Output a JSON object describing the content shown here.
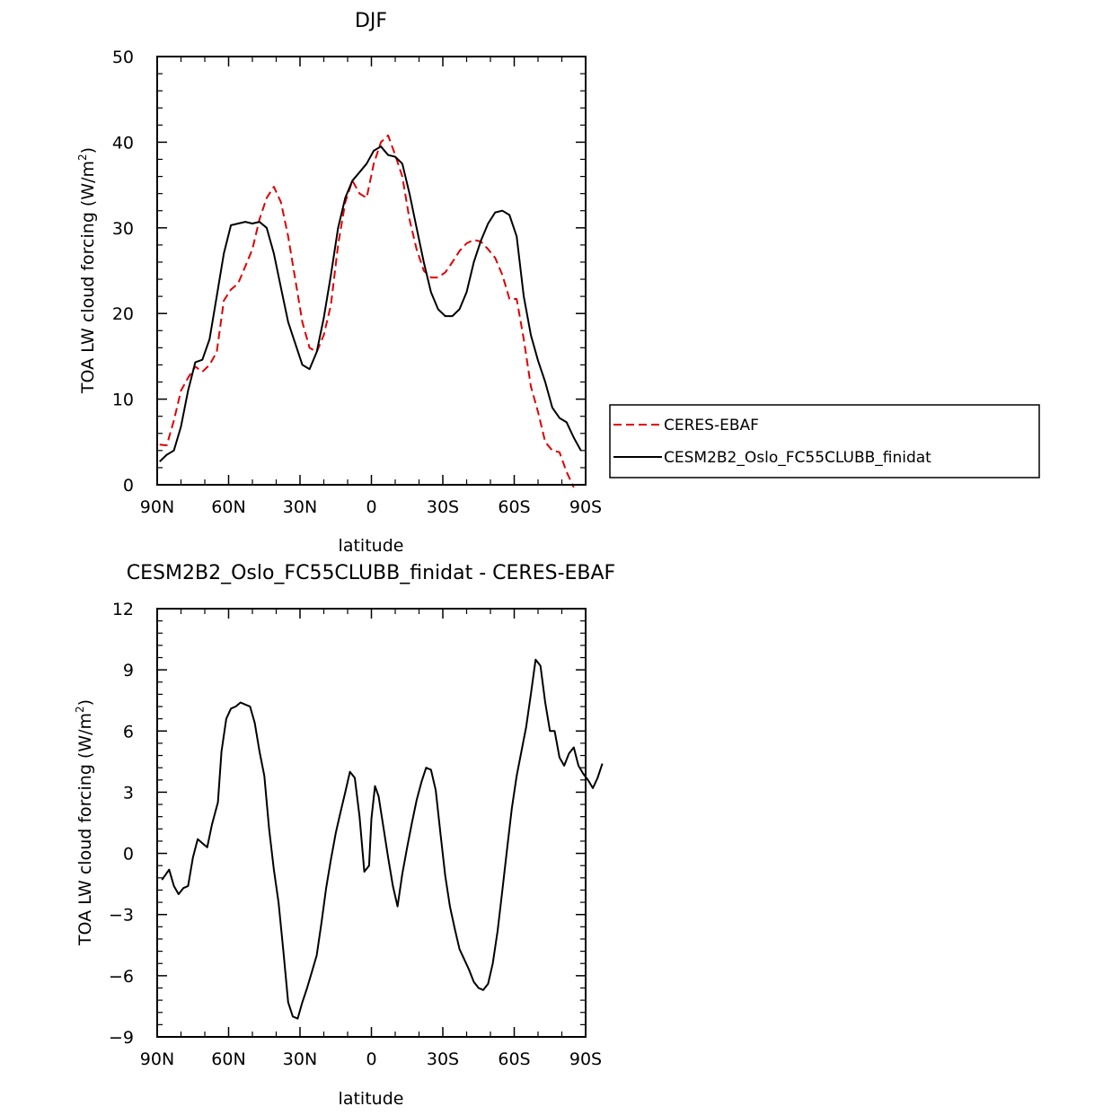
{
  "chart_data": [
    {
      "type": "line",
      "title": "DJF",
      "xlabel": "latitude",
      "ylabel": "TOA LW cloud forcing (W/m",
      "ylabel_sup": "2",
      "ylabel_close": ")",
      "xlim": [
        90,
        -90
      ],
      "ylim": [
        0,
        50
      ],
      "x_ticks": [
        {
          "value": 90,
          "label": "90N"
        },
        {
          "value": 60,
          "label": "60N"
        },
        {
          "value": 30,
          "label": "30N"
        },
        {
          "value": 0,
          "label": "0"
        },
        {
          "value": -30,
          "label": "30S"
        },
        {
          "value": -60,
          "label": "60S"
        },
        {
          "value": -90,
          "label": "90S"
        }
      ],
      "y_ticks": [
        {
          "value": 0,
          "label": "0"
        },
        {
          "value": 10,
          "label": "10"
        },
        {
          "value": 20,
          "label": "20"
        },
        {
          "value": 30,
          "label": "30"
        },
        {
          "value": 40,
          "label": "40"
        },
        {
          "value": 50,
          "label": "50"
        }
      ],
      "legend_position": "right",
      "series": [
        {
          "name": "CERES-EBAF",
          "color": "#e00000",
          "dash": "dashed",
          "points": [
            [
              89,
              4.7
            ],
            [
              86,
              4.6
            ],
            [
              83,
              7.5
            ],
            [
              80,
              11
            ],
            [
              77,
              12.5
            ],
            [
              74,
              13.8
            ],
            [
              71,
              13.2
            ],
            [
              68,
              14
            ],
            [
              65,
              15.5
            ],
            [
              62,
              21.5
            ],
            [
              59,
              22.8
            ],
            [
              56,
              23.5
            ],
            [
              53,
              25.5
            ],
            [
              50,
              27.5
            ],
            [
              47,
              31
            ],
            [
              44,
              33.5
            ],
            [
              41,
              34.8
            ],
            [
              38,
              33
            ],
            [
              35,
              29
            ],
            [
              32,
              24
            ],
            [
              29,
              19
            ],
            [
              26,
              16
            ],
            [
              23,
              15.5
            ],
            [
              20,
              17.5
            ],
            [
              17,
              21
            ],
            [
              14,
              28
            ],
            [
              11,
              33
            ],
            [
              8,
              35.5
            ],
            [
              5,
              34
            ],
            [
              2,
              33.5
            ],
            [
              -1,
              37.5
            ],
            [
              -4,
              40
            ],
            [
              -7,
              40.8
            ],
            [
              -10,
              38.5
            ],
            [
              -13,
              36
            ],
            [
              -16,
              31
            ],
            [
              -19,
              27.5
            ],
            [
              -22,
              25
            ],
            [
              -25,
              24.2
            ],
            [
              -28,
              24.2
            ],
            [
              -31,
              24.8
            ],
            [
              -34,
              26
            ],
            [
              -37,
              27.3
            ],
            [
              -40,
              28.2
            ],
            [
              -43,
              28.6
            ],
            [
              -46,
              28.4
            ],
            [
              -49,
              27.5
            ],
            [
              -52,
              26.5
            ],
            [
              -55,
              24.5
            ],
            [
              -58,
              21.7
            ],
            [
              -61,
              21.7
            ],
            [
              -64,
              17
            ],
            [
              -67,
              11.5
            ],
            [
              -70,
              8.5
            ],
            [
              -73,
              5
            ],
            [
              -76,
              4
            ],
            [
              -79,
              3.8
            ],
            [
              -82,
              1.5
            ],
            [
              -85,
              -0.3
            ]
          ]
        },
        {
          "name": "CESM2B2_Oslo_FC55CLUBB_finidat",
          "color": "#000000",
          "dash": "solid",
          "points": [
            [
              89,
              2.7
            ],
            [
              86,
              3.5
            ],
            [
              83,
              4
            ],
            [
              80,
              6.8
            ],
            [
              77,
              11
            ],
            [
              74,
              14.3
            ],
            [
              71,
              14.6
            ],
            [
              68,
              17
            ],
            [
              65,
              22
            ],
            [
              62,
              27
            ],
            [
              59,
              30.3
            ],
            [
              56,
              30.5
            ],
            [
              53,
              30.7
            ],
            [
              50,
              30.5
            ],
            [
              47,
              30.7
            ],
            [
              44,
              30
            ],
            [
              41,
              27
            ],
            [
              38,
              23
            ],
            [
              35,
              19
            ],
            [
              32,
              16.5
            ],
            [
              29,
              14
            ],
            [
              26,
              13.5
            ],
            [
              23,
              15.5
            ],
            [
              20,
              19.5
            ],
            [
              17,
              24.5
            ],
            [
              14,
              30
            ],
            [
              11,
              33.5
            ],
            [
              8,
              35.5
            ],
            [
              5,
              36.5
            ],
            [
              2,
              37.5
            ],
            [
              -1,
              39
            ],
            [
              -4,
              39.5
            ],
            [
              -7,
              38.5
            ],
            [
              -10,
              38.3
            ],
            [
              -13,
              37.5
            ],
            [
              -16,
              34
            ],
            [
              -19,
              30
            ],
            [
              -22,
              26
            ],
            [
              -25,
              22.5
            ],
            [
              -28,
              20.5
            ],
            [
              -31,
              19.7
            ],
            [
              -34,
              19.7
            ],
            [
              -37,
              20.5
            ],
            [
              -40,
              22.5
            ],
            [
              -43,
              26
            ],
            [
              -46,
              28.5
            ],
            [
              -49,
              30.5
            ],
            [
              -52,
              31.8
            ],
            [
              -55,
              32
            ],
            [
              -58,
              31.5
            ],
            [
              -61,
              29
            ],
            [
              -64,
              22
            ],
            [
              -67,
              17.5
            ],
            [
              -70,
              14.5
            ],
            [
              -73,
              12
            ],
            [
              -76,
              9
            ],
            [
              -79,
              7.8
            ],
            [
              -82,
              7.3
            ],
            [
              -85,
              5.5
            ],
            [
              -88,
              4
            ]
          ]
        }
      ]
    },
    {
      "type": "line",
      "title": "CESM2B2_Oslo_FC55CLUBB_finidat - CERES-EBAF",
      "xlabel": "latitude",
      "ylabel": "TOA LW cloud forcing (W/m",
      "ylabel_sup": "2",
      "ylabel_close": ")",
      "xlim": [
        90,
        -90
      ],
      "ylim": [
        -9,
        12
      ],
      "x_ticks": [
        {
          "value": 90,
          "label": "90N"
        },
        {
          "value": 60,
          "label": "60N"
        },
        {
          "value": 30,
          "label": "30N"
        },
        {
          "value": 0,
          "label": "0"
        },
        {
          "value": -30,
          "label": "30S"
        },
        {
          "value": -60,
          "label": "60S"
        },
        {
          "value": -90,
          "label": "90S"
        }
      ],
      "y_ticks": [
        {
          "value": -9,
          "label": "−9"
        },
        {
          "value": -6,
          "label": "−6"
        },
        {
          "value": -3,
          "label": "−3"
        },
        {
          "value": 0,
          "label": "0"
        },
        {
          "value": 3,
          "label": "3"
        },
        {
          "value": 6,
          "label": "6"
        },
        {
          "value": 9,
          "label": "9"
        },
        {
          "value": 12,
          "label": "12"
        }
      ],
      "series": [
        {
          "name": "CESM2B2_Oslo_FC55CLUBB_finidat - CERES-EBAF",
          "color": "#000000",
          "dash": "solid",
          "points": [
            [
              88,
              -1.3
            ],
            [
              85,
              -0.8
            ],
            [
              83,
              -1.6
            ],
            [
              81,
              -2
            ],
            [
              79,
              -1.7
            ],
            [
              77,
              -1.6
            ],
            [
              75,
              -0.2
            ],
            [
              73,
              0.7
            ],
            [
              71,
              0.5
            ],
            [
              69,
              0.3
            ],
            [
              67,
              1.4
            ],
            [
              64.5,
              2.5
            ],
            [
              63,
              5
            ],
            [
              61,
              6.6
            ],
            [
              59,
              7.1
            ],
            [
              57,
              7.2
            ],
            [
              55,
              7.4
            ],
            [
              53,
              7.3
            ],
            [
              51,
              7.2
            ],
            [
              49,
              6.4
            ],
            [
              47,
              5
            ],
            [
              45,
              3.8
            ],
            [
              43,
              1.2
            ],
            [
              41,
              -0.8
            ],
            [
              39,
              -2.4
            ],
            [
              37,
              -4.8
            ],
            [
              35,
              -7.3
            ],
            [
              33,
              -8
            ],
            [
              31,
              -8.1
            ],
            [
              29,
              -7.3
            ],
            [
              27,
              -6.6
            ],
            [
              25,
              -5.8
            ],
            [
              23,
              -5
            ],
            [
              21,
              -3.4
            ],
            [
              19,
              -1.7
            ],
            [
              17,
              -0.3
            ],
            [
              15,
              1
            ],
            [
              13,
              2
            ],
            [
              11,
              3
            ],
            [
              9,
              4
            ],
            [
              7,
              3.7
            ],
            [
              5,
              1.8
            ],
            [
              3,
              -0.9
            ],
            [
              1,
              -0.6
            ],
            [
              0,
              1.7
            ],
            [
              -1.5,
              3.3
            ],
            [
              -3,
              2.8
            ],
            [
              -5,
              1.3
            ],
            [
              -7,
              -0.2
            ],
            [
              -9,
              -1.6
            ],
            [
              -11,
              -2.6
            ],
            [
              -13,
              -1
            ],
            [
              -15,
              0.3
            ],
            [
              -17,
              1.5
            ],
            [
              -19,
              2.6
            ],
            [
              -21,
              3.5
            ],
            [
              -23,
              4.2
            ],
            [
              -25,
              4.1
            ],
            [
              -27,
              3.1
            ],
            [
              -29,
              1
            ],
            [
              -31,
              -1.1
            ],
            [
              -33,
              -2.6
            ],
            [
              -35,
              -3.7
            ],
            [
              -37,
              -4.7
            ],
            [
              -39,
              -5.2
            ],
            [
              -41,
              -5.7
            ],
            [
              -43,
              -6.3
            ],
            [
              -45,
              -6.6
            ],
            [
              -47,
              -6.7
            ],
            [
              -49,
              -6.4
            ],
            [
              -51,
              -5.4
            ],
            [
              -53,
              -3.8
            ],
            [
              -55,
              -1.8
            ],
            [
              -57,
              0.2
            ],
            [
              -59,
              2.2
            ],
            [
              -61,
              3.8
            ],
            [
              -63,
              5
            ],
            [
              -65,
              6.2
            ],
            [
              -67,
              7.8
            ],
            [
              -69,
              9.5
            ],
            [
              -71,
              9.2
            ],
            [
              -73,
              7.4
            ],
            [
              -75,
              6
            ],
            [
              -77,
              6
            ],
            [
              -79,
              4.7
            ],
            [
              -81,
              4.3
            ],
            [
              -83,
              4.9
            ],
            [
              -85,
              5.2
            ],
            [
              -87,
              4.3
            ],
            [
              -89,
              3.9
            ],
            [
              -91,
              3.6
            ],
            [
              -93,
              3.2
            ],
            [
              -95,
              3.7
            ],
            [
              -97,
              4.4
            ]
          ]
        }
      ]
    }
  ]
}
